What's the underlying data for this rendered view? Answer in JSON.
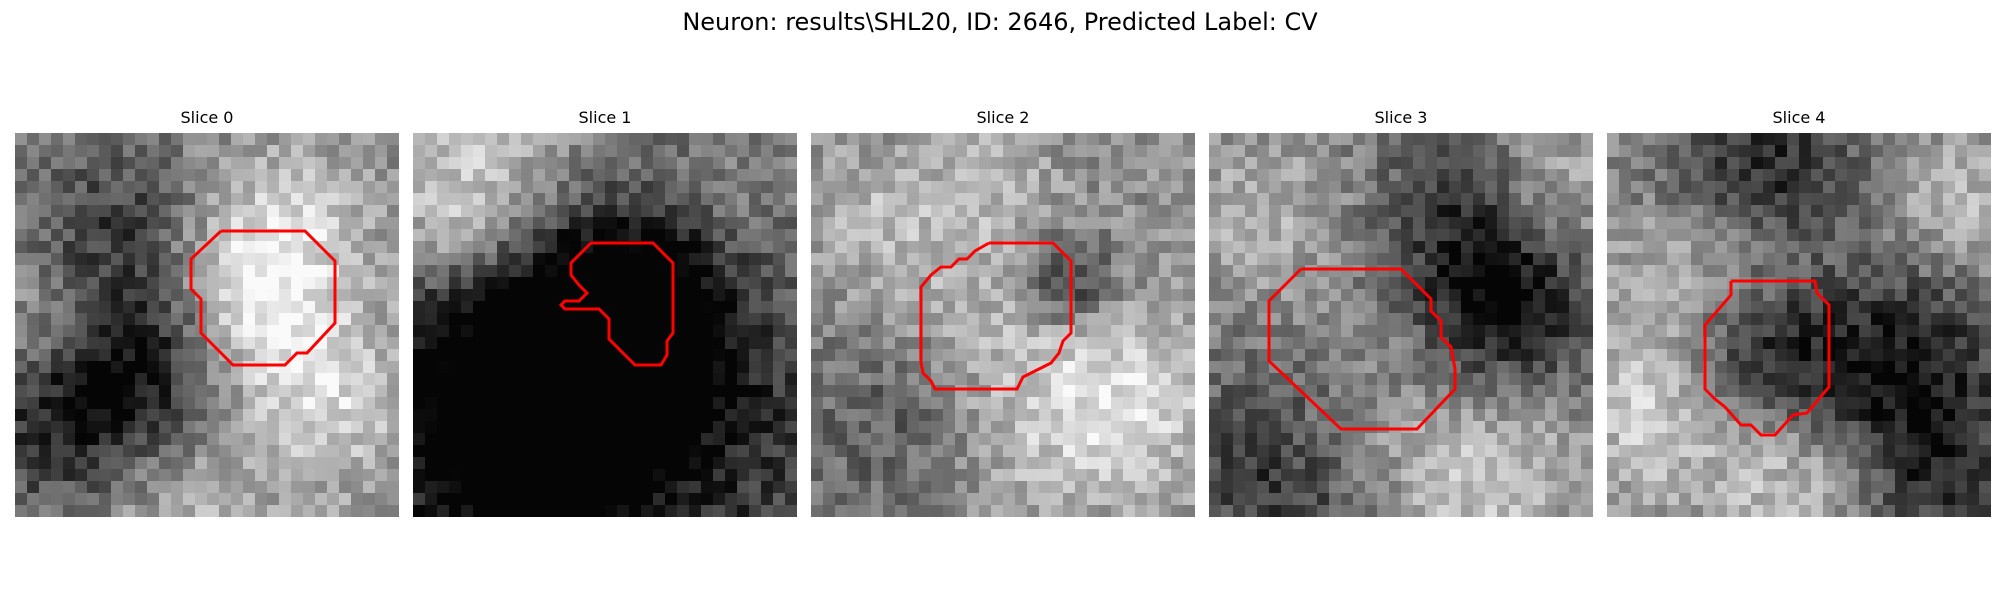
{
  "figure": {
    "title": "Neuron: results\\SHL20, ID: 2646, Predicted Label: CV"
  },
  "slices": [
    {
      "title": "Slice 0"
    },
    {
      "title": "Slice 1"
    },
    {
      "title": "Slice 2"
    },
    {
      "title": "Slice 3"
    },
    {
      "title": "Slice 4"
    }
  ],
  "colors": {
    "outline": "#ff0000",
    "colormap": "grayscale"
  }
}
